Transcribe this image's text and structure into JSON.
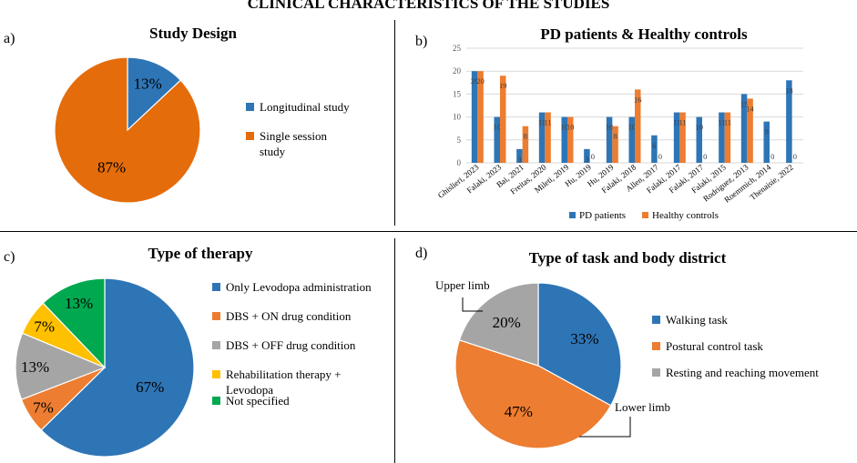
{
  "title": "CLINICAL CHARACTERISTICS OF THE STUDIES",
  "colors": {
    "blue": "#2e75b6",
    "orange": "#ed7d31",
    "darkorange": "#e46c0a",
    "lightorange": "#f08c45",
    "gray": "#a5a5a5",
    "yellow": "#ffc000",
    "green": "#00a84f",
    "axis": "#d9d9d9",
    "tick": "#595959"
  },
  "chart_data": [
    {
      "panel": "a)",
      "type": "pie",
      "title": "Study Design",
      "labels": [
        "Longitudinal study",
        "Single session study"
      ],
      "values": [
        13,
        87
      ],
      "value_labels": [
        "13%",
        "87%"
      ]
    },
    {
      "panel": "b)",
      "type": "bar",
      "title": "PD patients & Healthy controls",
      "categories": [
        "Ghislieri, 2023",
        "Falaki, 2023",
        "Bai, 2021",
        "Freitas, 2020",
        "Mileti, 2019",
        "Hu, 2019",
        "Hu, 2019",
        "Falaki, 2018",
        "Allen, 2017",
        "Falaki, 2017",
        "Falaki, 2017",
        "Falaki, 2015",
        "Rodriguez, 2013",
        "Roemmich, 2014",
        "Thenaisie, 2022"
      ],
      "series": [
        {
          "name": "PD patients",
          "values": [
            20,
            10,
            3,
            11,
            10,
            3,
            10,
            10,
            6,
            11,
            10,
            11,
            15,
            9,
            18
          ]
        },
        {
          "name": "Healthy controls",
          "values": [
            20,
            19,
            8,
            11,
            10,
            0,
            8,
            16,
            0,
            11,
            0,
            11,
            14,
            0,
            0
          ]
        }
      ],
      "ylim": [
        0,
        25
      ],
      "yticks": [
        0,
        5,
        10,
        15,
        20,
        25
      ],
      "legend": "bottom"
    },
    {
      "panel": "c)",
      "type": "pie",
      "title": "Type of therapy",
      "labels": [
        "Only Levodopa administration",
        "DBS + ON drug condition",
        "DBS + OFF drug condition",
        "Rehabilitation therapy + Levodopa",
        "Not specified"
      ],
      "values": [
        67,
        7,
        13,
        7,
        13
      ],
      "value_labels": [
        "67%",
        "7%",
        "13%",
        "7%",
        "13%"
      ]
    },
    {
      "panel": "d)",
      "type": "pie",
      "title": "Type of task and body district",
      "labels": [
        "Walking task",
        "Postural control task",
        "Resting and reaching movement"
      ],
      "values": [
        33,
        47,
        20
      ],
      "value_labels": [
        "33%",
        "47%",
        "20%"
      ],
      "annotations": [
        "Upper limb",
        "Lower limb"
      ]
    }
  ]
}
